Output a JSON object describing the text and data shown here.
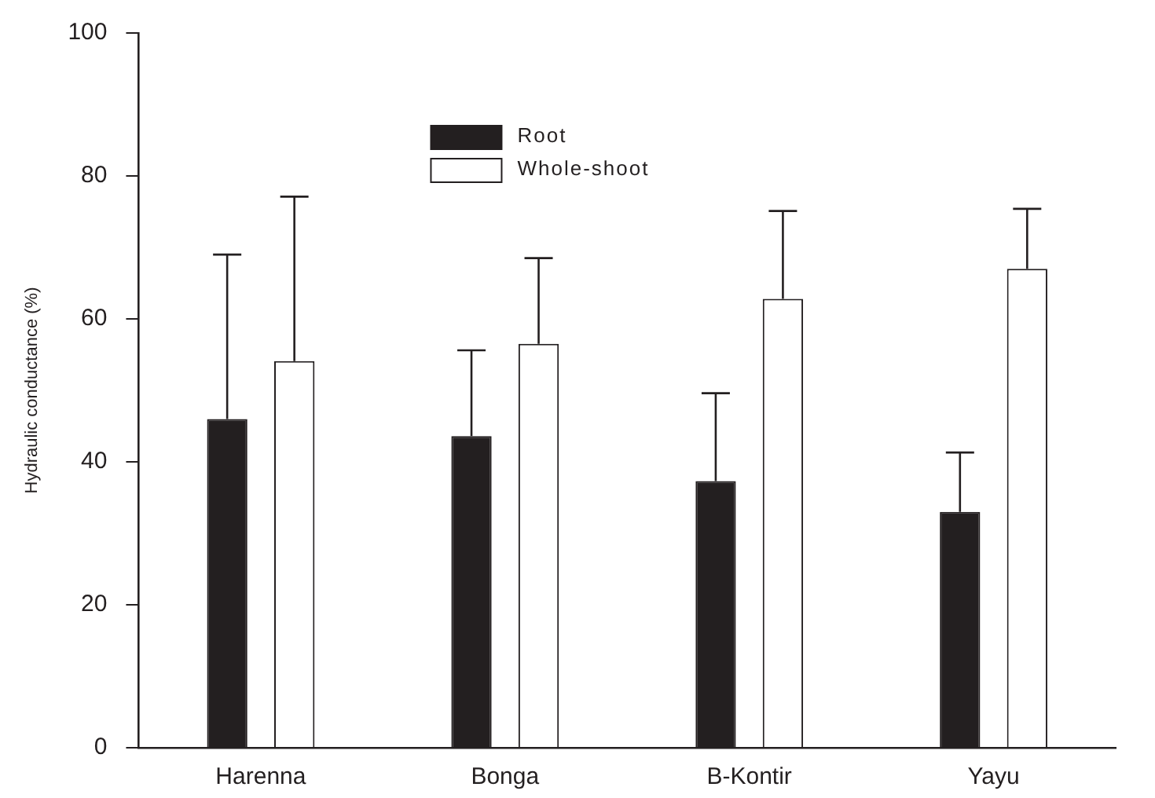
{
  "chart_data": {
    "type": "bar",
    "ylabel": "Hydraulic conductance (%)",
    "categories": [
      "Harenna",
      "Bonga",
      "B-Kontir",
      "Yayu"
    ],
    "series": [
      {
        "name": "Root",
        "color": "#231f20",
        "values": [
          46.0,
          43.6,
          37.3,
          33.0
        ],
        "errors": [
          [
            46.0,
            69.0
          ],
          [
            43.6,
            55.6
          ],
          [
            37.3,
            49.6
          ],
          [
            33.0,
            41.3
          ]
        ]
      },
      {
        "name": "Whole-shoot",
        "color": "#ffffff",
        "values": [
          54.1,
          56.5,
          62.8,
          67.0
        ],
        "errors": [
          [
            54.1,
            77.1
          ],
          [
            56.5,
            68.5
          ],
          [
            62.8,
            75.1
          ],
          [
            67.0,
            75.4
          ]
        ]
      }
    ],
    "ylim": [
      0,
      100
    ],
    "yticks": [
      0,
      20,
      40,
      60,
      80,
      100
    ],
    "grid": false,
    "legend": "top"
  }
}
